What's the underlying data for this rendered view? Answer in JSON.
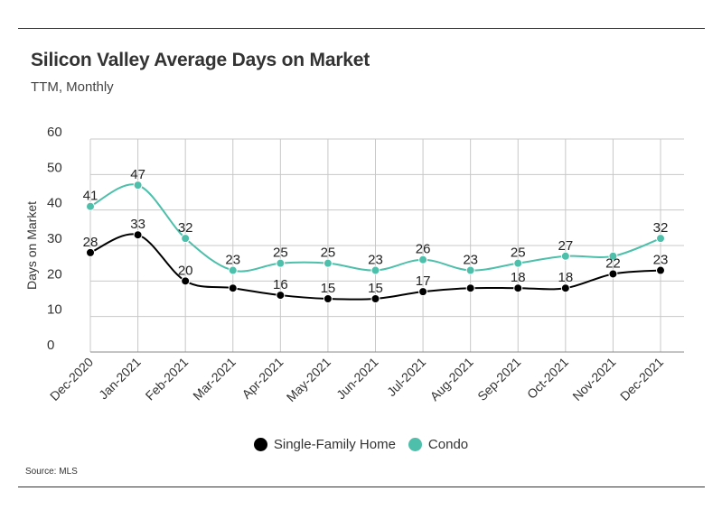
{
  "header": {
    "title": "Silicon Valley Average Days on Market",
    "subtitle": "TTM, Monthly"
  },
  "footer": {
    "source": "Source:  MLS"
  },
  "colors": {
    "single_family": "#000000",
    "condo": "#4dbfaa",
    "grid": "#c8c8c8"
  },
  "chart_data": {
    "type": "line",
    "title": "Silicon Valley Average Days on Market",
    "subtitle": "TTM, Monthly",
    "xlabel": "",
    "ylabel": "Days on Market",
    "ylim": [
      0,
      60
    ],
    "yticks": [
      0,
      10,
      20,
      30,
      40,
      50,
      60
    ],
    "grid": true,
    "legend": "bottom-center",
    "categories": [
      "Dec-2020",
      "Jan-2021",
      "Feb-2021",
      "Mar-2021",
      "Apr-2021",
      "May-2021",
      "Jun-2021",
      "Jul-2021",
      "Aug-2021",
      "Sep-2021",
      "Oct-2021",
      "Nov-2021",
      "Dec-2021"
    ],
    "series": [
      {
        "name": "Single-Family Home",
        "color": "#000000",
        "values": [
          28,
          33,
          20,
          18,
          16,
          15,
          15,
          17,
          18,
          18,
          18,
          22,
          23
        ],
        "labels": [
          "28",
          "33",
          "20",
          "",
          "16",
          "15",
          "15",
          "17",
          "",
          "18",
          "18",
          "22",
          "23"
        ]
      },
      {
        "name": "Condo",
        "color": "#4dbfaa",
        "values": [
          41,
          47,
          32,
          23,
          25,
          25,
          23,
          26,
          23,
          25,
          27,
          27,
          32
        ],
        "labels": [
          "41",
          "47",
          "32",
          "23",
          "25",
          "25",
          "23",
          "26",
          "23",
          "25",
          "27",
          "",
          "32"
        ]
      }
    ]
  }
}
